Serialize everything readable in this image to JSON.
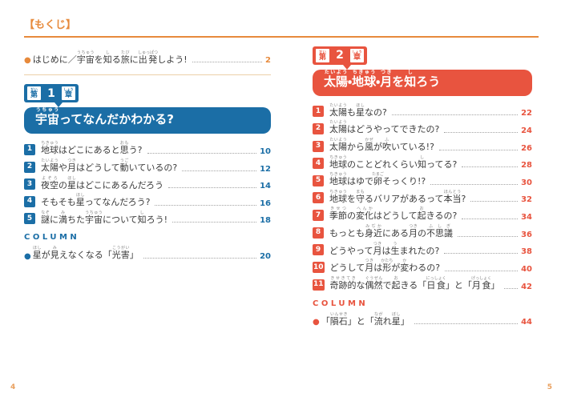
{
  "page": {
    "title": "【もくじ】",
    "accent_orange": "#E78A3C",
    "folio_left": "4",
    "folio_right": "5"
  },
  "intro": {
    "bullet": "●",
    "text": "はじめに／{宇宙}[うちゅう]を{知}[し]る{旅}[たび]に{出発}[しゅっぱつ]しよう!",
    "page": "2"
  },
  "chapters": [
    {
      "accent": "#1B6EA6",
      "badge": {
        "prefix": "{第}[だい]",
        "number": "1",
        "suffix": "{章}[しょう]"
      },
      "title": "{宇宙}[うちゅう]ってなんだかわかる?",
      "items": [
        {
          "num": "1",
          "text": "{地球}[ちきゅう]はどこにあると{思}[おも]う?",
          "page": "10"
        },
        {
          "num": "2",
          "text": "{太陽}[たいよう]や{月}[つき]はどうして{動}[うご]いているの?",
          "page": "12"
        },
        {
          "num": "3",
          "text": "{夜空}[よぞら]の{星}[ほし]はどこにあるんだろう",
          "page": "14"
        },
        {
          "num": "4",
          "text": "そもそも{星}[ほし]ってなんだろう?",
          "page": "16"
        },
        {
          "num": "5",
          "text": "{謎}[なぞ]に{満}[み]ちた{宇宙}[うちゅう]について{知}[し]ろう!",
          "page": "18"
        }
      ],
      "column_label": "COLUMN",
      "column_items": [
        {
          "bullet": "●",
          "text": "{星}[ほし]が{見}[み]えなくなる「{光害}[こうがい]」",
          "page": "20"
        }
      ]
    },
    {
      "accent": "#E8543F",
      "badge": {
        "prefix": "{第}[だい]",
        "number": "2",
        "suffix": "{章}[しょう]"
      },
      "title": "{太陽}[たいよう]・{地球}[ちきゅう]・{月}[つき]を{知}[し]ろう",
      "items": [
        {
          "num": "1",
          "text": "{太陽}[たいよう]も{星}[ほし]なの?",
          "page": "22"
        },
        {
          "num": "2",
          "text": "{太陽}[たいよう]はどうやってできたの?",
          "page": "24"
        },
        {
          "num": "3",
          "text": "{太陽}[たいよう]から{風}[かぜ]が{吹}[ふ]いている!?",
          "page": "26"
        },
        {
          "num": "4",
          "text": "{地球}[ちきゅう]のことどれくらい{知}[し]ってる?",
          "page": "28"
        },
        {
          "num": "5",
          "text": "{地球}[ちきゅう]はゆで{卵}[たまご]そっくり!?",
          "page": "30"
        },
        {
          "num": "6",
          "text": "{地球}[ちきゅう]を{守}[まも]るバリアがあるって{本当}[ほんとう]?",
          "page": "32"
        },
        {
          "num": "7",
          "text": "{季節}[きせつ]の{変化}[へんか]はどうして{起}[お]きるの?",
          "page": "34"
        },
        {
          "num": "8",
          "text": "もっとも{身近}[みぢか]にある{月}[つき]の{不思議}[ふしぎ]",
          "page": "36"
        },
        {
          "num": "9",
          "text": "どうやって{月}[つき]は{生}[う]まれたの?",
          "page": "38"
        },
        {
          "num": "10",
          "text": "どうして{月}[つき]は{形}[かたち]が{変}[か]わるの?",
          "page": "40"
        },
        {
          "num": "11",
          "text": "{奇跡的}[きせきてき]な{偶然}[ぐうぜん]で{起}[お]きる「{日食}[にっしょく]」と「{月食}[げっしょく]」",
          "page": "42"
        }
      ],
      "column_label": "COLUMN",
      "column_items": [
        {
          "bullet": "●",
          "text": "「{隕石}[いんせき]」と「{流}[なが]れ{星}[ぼし]」",
          "page": "44"
        }
      ]
    }
  ]
}
